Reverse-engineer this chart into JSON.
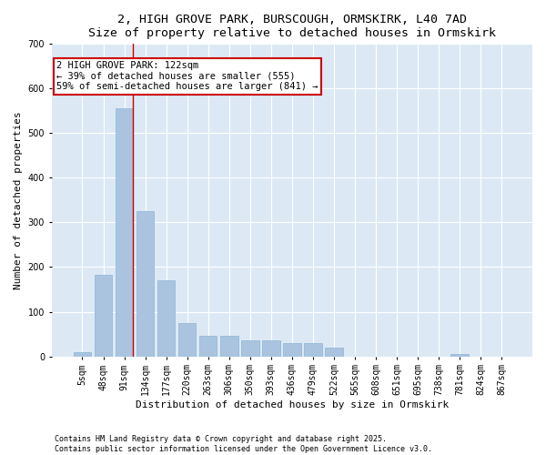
{
  "title_line1": "2, HIGH GROVE PARK, BURSCOUGH, ORMSKIRK, L40 7AD",
  "title_line2": "Size of property relative to detached houses in Ormskirk",
  "xlabel": "Distribution of detached houses by size in Ormskirk",
  "ylabel": "Number of detached properties",
  "categories": [
    "5sqm",
    "48sqm",
    "91sqm",
    "134sqm",
    "177sqm",
    "220sqm",
    "263sqm",
    "306sqm",
    "350sqm",
    "393sqm",
    "436sqm",
    "479sqm",
    "522sqm",
    "565sqm",
    "608sqm",
    "651sqm",
    "695sqm",
    "738sqm",
    "781sqm",
    "824sqm",
    "867sqm"
  ],
  "values": [
    10,
    182,
    555,
    325,
    170,
    75,
    45,
    45,
    35,
    35,
    30,
    30,
    20,
    0,
    0,
    0,
    0,
    0,
    5,
    0,
    0
  ],
  "bar_color": "#aac4e0",
  "bar_edge_color": "#8ab4d4",
  "background_color": "#dce9f5",
  "grid_color": "#ffffff",
  "red_line_color": "#cc0000",
  "annotation_text": "2 HIGH GROVE PARK: 122sqm\n← 39% of detached houses are smaller (555)\n59% of semi-detached houses are larger (841) →",
  "annotation_box_color": "#cc0000",
  "ylim": [
    0,
    700
  ],
  "yticks": [
    0,
    100,
    200,
    300,
    400,
    500,
    600,
    700
  ],
  "footer_line1": "Contains HM Land Registry data © Crown copyright and database right 2025.",
  "footer_line2": "Contains public sector information licensed under the Open Government Licence v3.0.",
  "title_fontsize": 9.5,
  "axis_label_fontsize": 8,
  "tick_fontsize": 7,
  "annotation_fontsize": 7.5,
  "ylabel_fontsize": 8,
  "footer_fontsize": 6
}
